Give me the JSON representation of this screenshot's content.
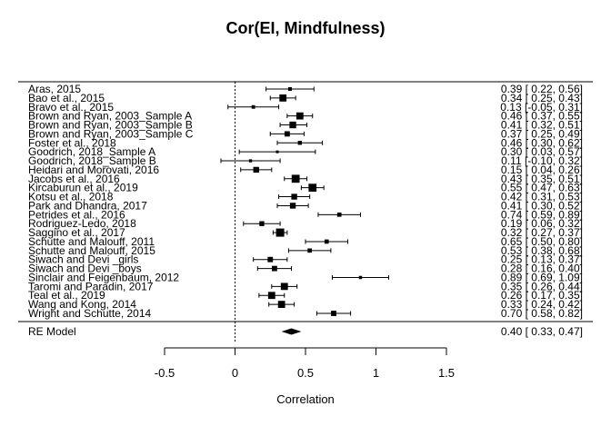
{
  "chart_data": {
    "type": "forest",
    "title": "Cor(EI, Mindfulness)",
    "xlabel": "Correlation",
    "xlim": [
      -0.5,
      1.5
    ],
    "xticks": [
      -0.5,
      0,
      0.5,
      1,
      1.5
    ],
    "xtick_labels": [
      "-0.5",
      "0",
      "0.5",
      "1",
      "1.5"
    ],
    "reference_line": 0,
    "studies": [
      {
        "label": "Aras, 2015",
        "est": 0.39,
        "lo": 0.22,
        "hi": 0.56,
        "ci_text": "0.39 [ 0.22, 0.56]"
      },
      {
        "label": "Bao et al., 2015",
        "est": 0.34,
        "lo": 0.25,
        "hi": 0.43,
        "ci_text": "0.34 [ 0.25, 0.43]"
      },
      {
        "label": "Bravo et al., 2015",
        "est": 0.13,
        "lo": -0.05,
        "hi": 0.31,
        "ci_text": "0.13 [-0.05, 0.31]"
      },
      {
        "label": "Brown and Ryan, 2003_Sample A",
        "est": 0.46,
        "lo": 0.37,
        "hi": 0.55,
        "ci_text": "0.46 [ 0.37, 0.55]"
      },
      {
        "label": "Brown and Ryan, 2003_Sample B",
        "est": 0.41,
        "lo": 0.32,
        "hi": 0.51,
        "ci_text": "0.41 [ 0.32, 0.51]"
      },
      {
        "label": "Brown and Ryan, 2003_Sample C",
        "est": 0.37,
        "lo": 0.25,
        "hi": 0.49,
        "ci_text": "0.37 [ 0.25, 0.49]"
      },
      {
        "label": "Foster et al., 2018",
        "est": 0.46,
        "lo": 0.3,
        "hi": 0.62,
        "ci_text": "0.46 [ 0.30, 0.62]"
      },
      {
        "label": "Goodrich, 2018_Sample A",
        "est": 0.3,
        "lo": 0.03,
        "hi": 0.57,
        "ci_text": "0.30 [ 0.03, 0.57]"
      },
      {
        "label": "Goodrich, 2018_Sample B",
        "est": 0.11,
        "lo": -0.1,
        "hi": 0.32,
        "ci_text": "0.11 [-0.10, 0.32]"
      },
      {
        "label": "Heidari and Morovati, 2016",
        "est": 0.15,
        "lo": 0.04,
        "hi": 0.26,
        "ci_text": "0.15 [ 0.04, 0.26]"
      },
      {
        "label": "Jacobs et al., 2016",
        "est": 0.43,
        "lo": 0.35,
        "hi": 0.51,
        "ci_text": "0.43 [ 0.35, 0.51]"
      },
      {
        "label": "Kircaburun et al., 2019",
        "est": 0.55,
        "lo": 0.47,
        "hi": 0.63,
        "ci_text": "0.55 [ 0.47, 0.63]"
      },
      {
        "label": "Kotsu et al., 2018",
        "est": 0.42,
        "lo": 0.31,
        "hi": 0.53,
        "ci_text": "0.42 [ 0.31, 0.53]"
      },
      {
        "label": "Park and Dhandra, 2017",
        "est": 0.41,
        "lo": 0.3,
        "hi": 0.52,
        "ci_text": "0.41 [ 0.30, 0.52]"
      },
      {
        "label": "Petrides et al., 2016",
        "est": 0.74,
        "lo": 0.59,
        "hi": 0.89,
        "ci_text": "0.74 [ 0.59, 0.89]"
      },
      {
        "label": "Rodriguez-Ledo, 2018",
        "est": 0.19,
        "lo": 0.06,
        "hi": 0.32,
        "ci_text": "0.19 [ 0.06, 0.32]"
      },
      {
        "label": "Saggino et al., 2017",
        "est": 0.32,
        "lo": 0.27,
        "hi": 0.37,
        "ci_text": "0.32 [ 0.27, 0.37]"
      },
      {
        "label": "Schutte and Malouff, 2011",
        "est": 0.65,
        "lo": 0.5,
        "hi": 0.8,
        "ci_text": "0.65 [ 0.50, 0.80]"
      },
      {
        "label": "Schutte and Malouff, 2015",
        "est": 0.53,
        "lo": 0.38,
        "hi": 0.68,
        "ci_text": "0.53 [ 0.38, 0.68]"
      },
      {
        "label": "Siwach and Devi _girls",
        "est": 0.25,
        "lo": 0.13,
        "hi": 0.37,
        "ci_text": "0.25 [ 0.13, 0.37]"
      },
      {
        "label": "Siwach and Devi _boys",
        "est": 0.28,
        "lo": 0.16,
        "hi": 0.4,
        "ci_text": "0.28 [ 0.16, 0.40]"
      },
      {
        "label": "Sinclair and Feigenbaum, 2012",
        "est": 0.89,
        "lo": 0.69,
        "hi": 1.09,
        "ci_text": "0.89 [ 0.69, 1.09]"
      },
      {
        "label": "Taromi and Paradin, 2017",
        "est": 0.35,
        "lo": 0.26,
        "hi": 0.44,
        "ci_text": "0.35 [ 0.26, 0.44]"
      },
      {
        "label": "Teal et al., 2019",
        "est": 0.26,
        "lo": 0.17,
        "hi": 0.35,
        "ci_text": "0.26 [ 0.17, 0.35]"
      },
      {
        "label": "Wang and Kong, 2014",
        "est": 0.33,
        "lo": 0.24,
        "hi": 0.42,
        "ci_text": "0.33 [ 0.24, 0.42]"
      },
      {
        "label": "Wright and Schutte, 2014",
        "est": 0.7,
        "lo": 0.58,
        "hi": 0.82,
        "ci_text": "0.70 [ 0.58, 0.82]"
      }
    ],
    "summary": {
      "label": "RE Model",
      "est": 0.4,
      "lo": 0.33,
      "hi": 0.47,
      "ci_text": "0.40 [ 0.33, 0.47]"
    }
  }
}
